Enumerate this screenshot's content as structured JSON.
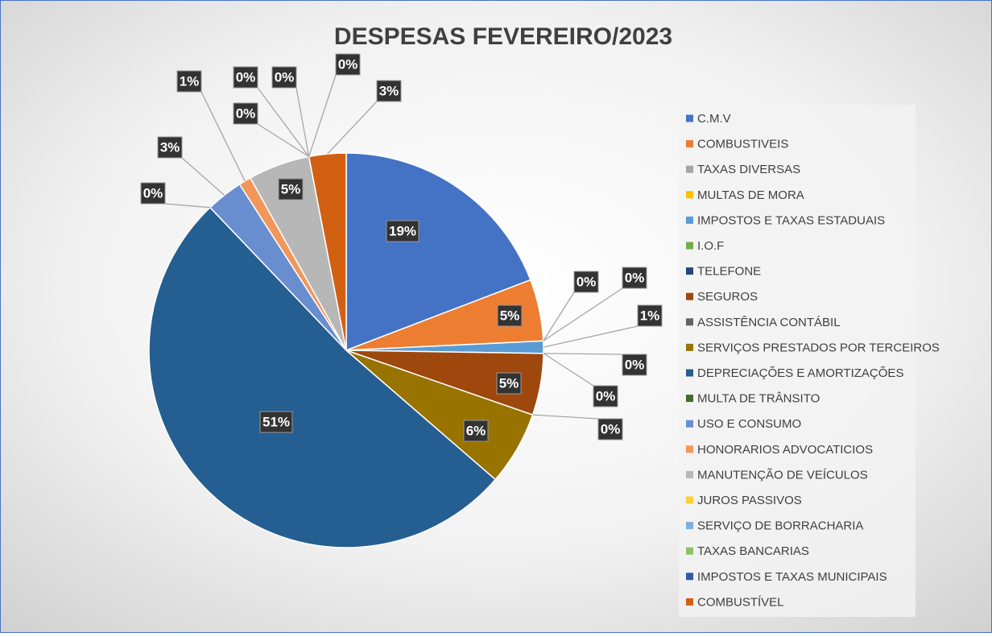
{
  "chart_data": {
    "type": "pie",
    "title": "DESPESAS FEVEREIRO/2023",
    "categories": [
      "C.M.V",
      "COMBUSTIVEIS",
      "TAXAS DIVERSAS",
      "MULTAS DE MORA",
      "IMPOSTOS E TAXAS ESTADUAIS",
      "I.O.F",
      "TELEFONE",
      "SEGUROS",
      "ASSISTÊNCIA CONTÁBIL",
      "SERVIÇOS PRESTADOS POR TERCEIROS",
      "DEPRECIAÇÕES E AMORTIZAÇÕES",
      "MULTA DE TRÂNSITO",
      "USO E CONSUMO",
      "HONORARIOS ADVOCATICIOS",
      "MANUTENÇÃO DE VEÍCULOS",
      "JUROS PASSIVOS",
      "SERVIÇO DE BORRACHARIA",
      "TAXAS BANCARIAS",
      "IMPOSTOS E TAXAS MUNICIPAIS",
      "COMBUSTÍVEL"
    ],
    "values": [
      19,
      5,
      0,
      0,
      1,
      0,
      0,
      5,
      0,
      6,
      51,
      0,
      3,
      1,
      5,
      0,
      0,
      0,
      0,
      3
    ],
    "value_labels": [
      "19%",
      "5%",
      "0%",
      "0%",
      "1%",
      "0%",
      "0%",
      "5%",
      "0%",
      "6%",
      "51%",
      "0%",
      "3%",
      "1%",
      "5%",
      "0%",
      "0%",
      "0%",
      "0%",
      "3%"
    ],
    "colors": [
      "#4472c4",
      "#ed7d31",
      "#a5a5a5",
      "#ffc000",
      "#5b9bd5",
      "#70ad47",
      "#264478",
      "#9e480e",
      "#636363",
      "#997300",
      "#255e91",
      "#43682b",
      "#698ed0",
      "#f1975a",
      "#b7b7b7",
      "#ffcd33",
      "#7cafdd",
      "#8cc168",
      "#335aa1",
      "#d26012"
    ],
    "legend": "right"
  }
}
